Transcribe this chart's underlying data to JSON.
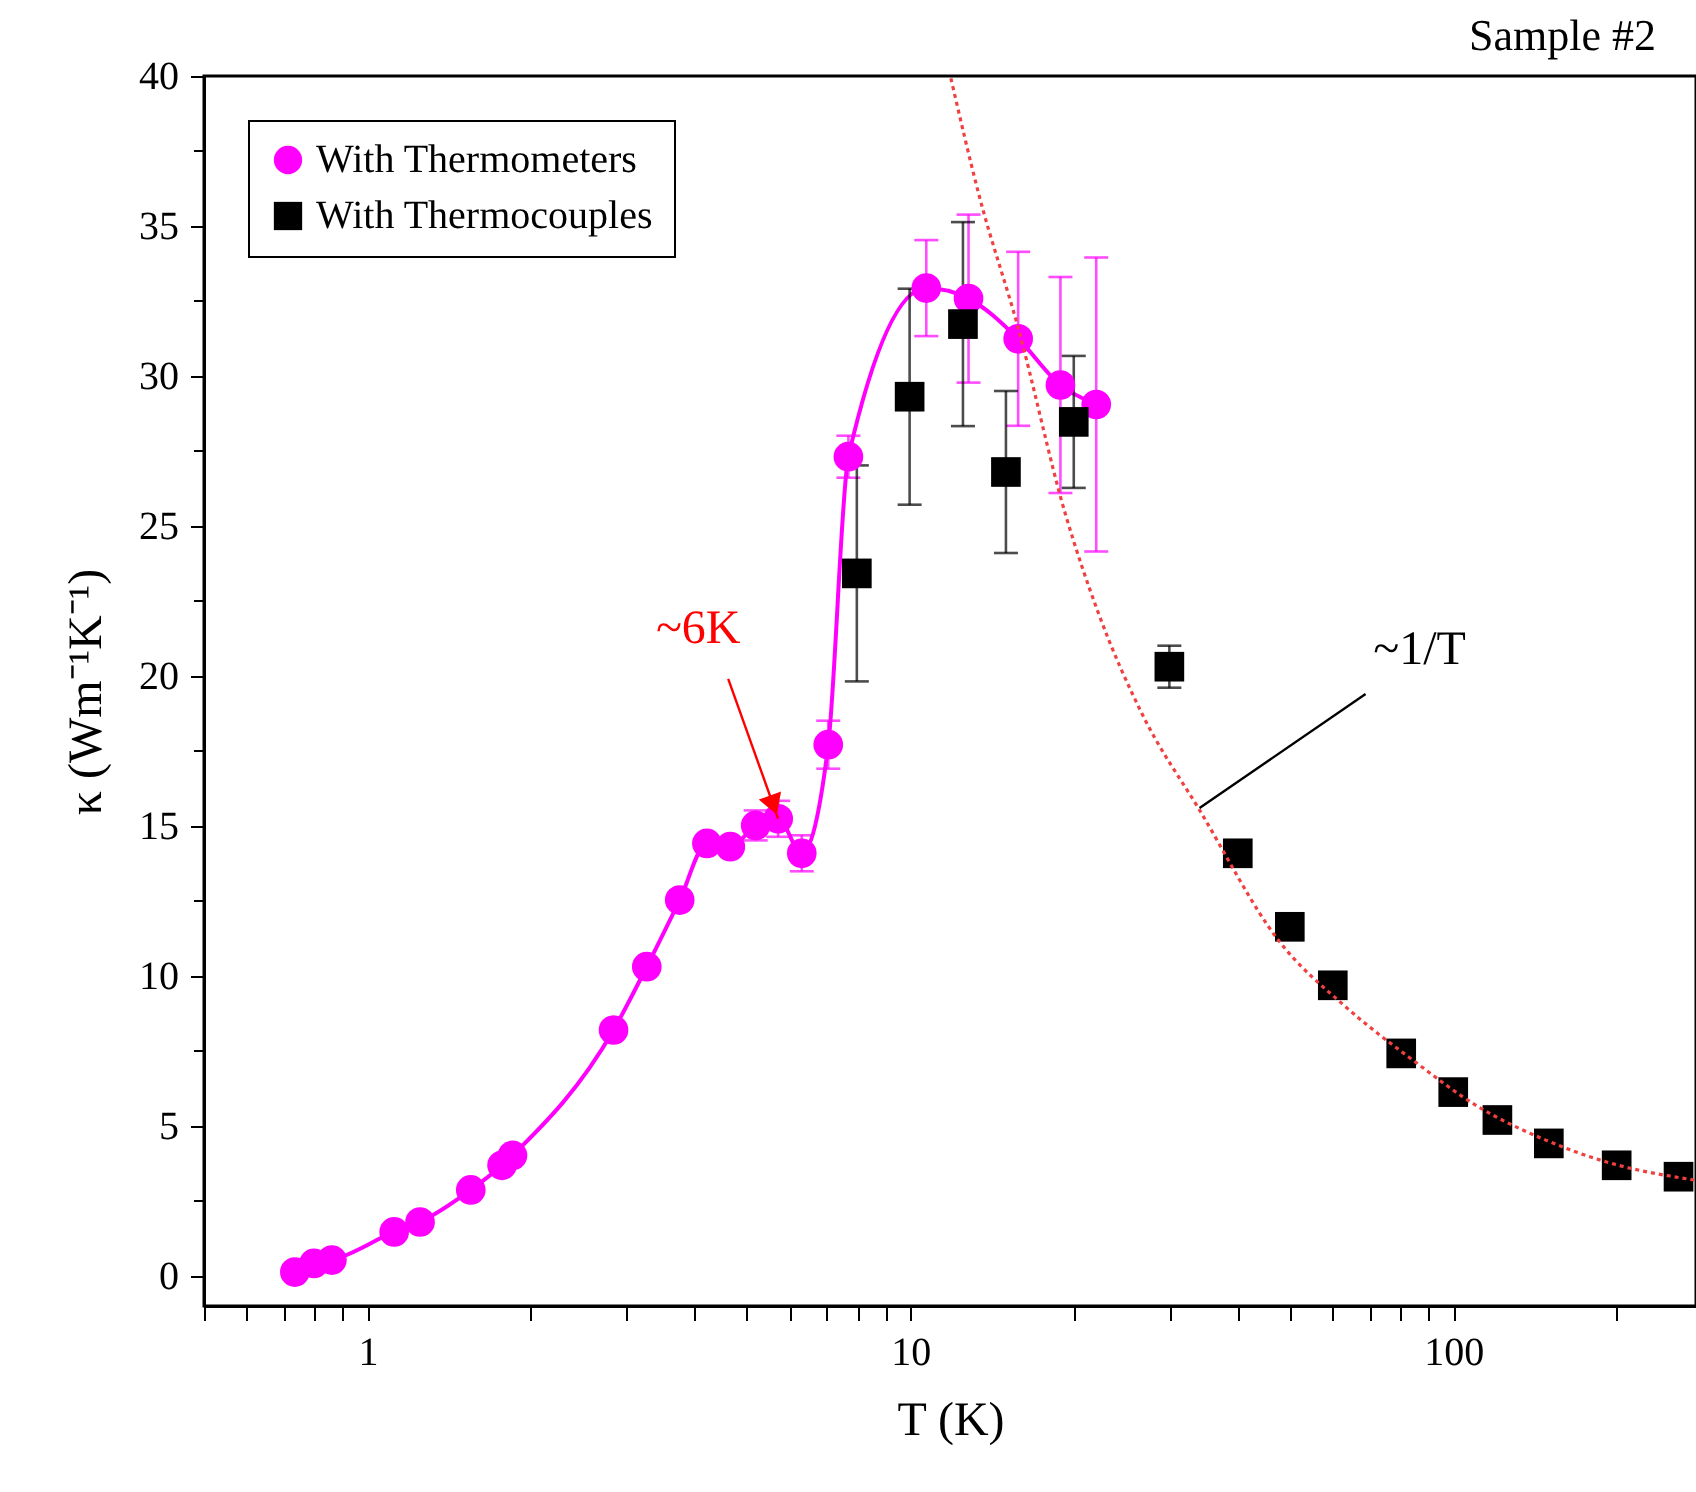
{
  "chart_data": {
    "type": "scatter",
    "xlabel": "T (K)",
    "ylabel": "κ (Wm⁻¹K⁻¹)",
    "log": "x",
    "xlim": [
      0.5,
      280
    ],
    "ylim": [
      -1,
      40
    ],
    "xticks": [
      {
        "value": 0.5,
        "label": null
      },
      {
        "value": 0.6,
        "label": null
      },
      {
        "value": 0.7,
        "label": null
      },
      {
        "value": 0.8,
        "label": null
      },
      {
        "value": 0.9,
        "label": null
      },
      1,
      {
        "value": 2,
        "label": null
      },
      {
        "value": 3,
        "label": null
      },
      {
        "value": 4,
        "label": null
      },
      {
        "value": 5,
        "label": null
      },
      {
        "value": 6,
        "label": null
      },
      {
        "value": 7,
        "label": null
      },
      {
        "value": 8,
        "label": null
      },
      {
        "value": 9,
        "label": null
      },
      10,
      {
        "value": 20,
        "label": null
      },
      {
        "value": 30,
        "label": null
      },
      {
        "value": 40,
        "label": null
      },
      {
        "value": 50,
        "label": null
      },
      {
        "value": 60,
        "label": null
      },
      {
        "value": 70,
        "label": null
      },
      {
        "value": 80,
        "label": null
      },
      {
        "value": 90,
        "label": null
      },
      100,
      {
        "value": 200,
        "label": null
      }
    ],
    "yticks": [
      0,
      {
        "value": 2.5,
        "label": null
      },
      5,
      {
        "value": 7.5,
        "label": null
      },
      10,
      {
        "value": 12.5,
        "label": null
      },
      15,
      {
        "value": 17.5,
        "label": null
      },
      20,
      {
        "value": 22.5,
        "label": null
      },
      25,
      {
        "value": 27.5,
        "label": null
      },
      30,
      {
        "value": 32.5,
        "label": null
      },
      35,
      {
        "value": 37.5,
        "label": null
      },
      40
    ],
    "grid": false,
    "legend": "top left",
    "series": [
      {
        "name": "With Thermometers",
        "type": "line",
        "marker": "circle",
        "color": "#ff00ff",
        "x": [
          0.735,
          0.797,
          0.86,
          1.12,
          1.25,
          1.55,
          1.77,
          1.85,
          2.84,
          3.27,
          3.76,
          4.22,
          4.66,
          5.19,
          5.71,
          6.31,
          7.06,
          7.69,
          10.7,
          12.8,
          15.8,
          18.9,
          22.0
        ],
        "values": [
          0.13,
          0.42,
          0.53,
          1.47,
          1.8,
          2.87,
          3.69,
          4.02,
          8.2,
          10.31,
          12.53,
          14.42,
          14.31,
          15.02,
          15.24,
          14.09,
          17.71,
          27.31,
          32.93,
          32.58,
          31.24,
          29.7,
          29.05
        ],
        "errors": [
          null,
          null,
          null,
          null,
          null,
          null,
          null,
          null,
          null,
          null,
          null,
          null,
          null,
          0.5,
          0.6,
          0.6,
          0.8,
          0.7,
          1.6,
          2.8,
          2.9,
          3.6,
          4.9
        ]
      },
      {
        "name": "With Thermocouples",
        "marker": "square",
        "color": "#000000",
        "x": [
          7.97,
          9.97,
          12.5,
          15.0,
          20.0,
          30.0,
          40.1,
          50,
          60,
          80.2,
          100,
          120.6,
          150,
          200,
          260
        ],
        "values": [
          23.42,
          29.31,
          31.73,
          26.8,
          28.47,
          20.31,
          14.09,
          11.64,
          9.69,
          7.42,
          6.13,
          5.2,
          4.42,
          3.69,
          3.31
        ],
        "errors": [
          3.6,
          3.6,
          3.4,
          2.7,
          2.2,
          0.7,
          null,
          null,
          null,
          null,
          null,
          null,
          null,
          null,
          null
        ]
      },
      {
        "type": "line",
        "line_style": "dotted",
        "color": "#f04040",
        "x": [
          11.85,
          13.35,
          15.8,
          19.3,
          22.2,
          26.7,
          34.1,
          47.6,
          63.3,
          84.2,
          111,
          148,
          196,
          278
        ],
        "values": [
          40,
          36.1,
          31.6,
          25.4,
          22.1,
          18.75,
          15.53,
          11.2,
          8.98,
          7.2,
          5.65,
          4.53,
          3.75,
          3.2
        ]
      }
    ],
    "annotations": [
      {
        "text": "~6K",
        "x": 5.71,
        "y": 15.24
      },
      {
        "text": "~1/T",
        "x": 34.1,
        "y": 15.6
      },
      "Sample #2"
    ]
  }
}
